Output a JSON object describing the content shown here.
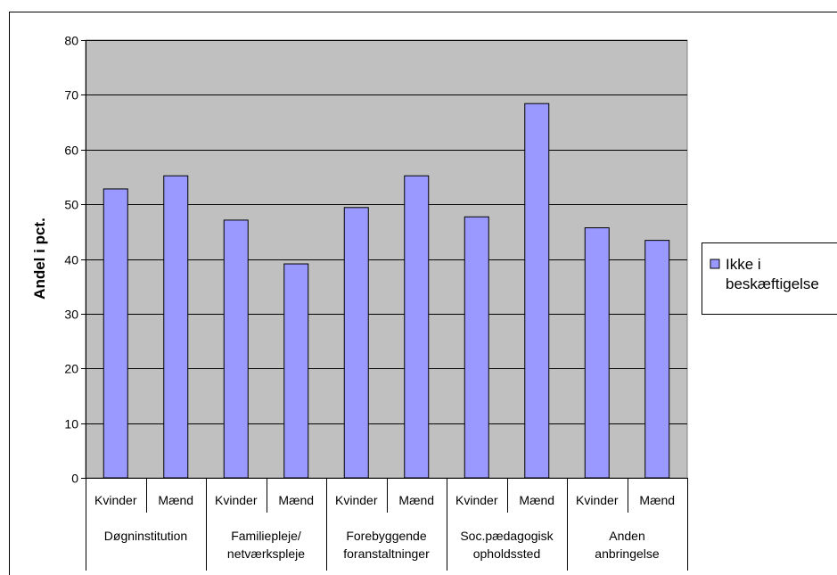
{
  "chart_data": {
    "type": "bar",
    "ylabel": "Andel i pct.",
    "ylim": [
      0,
      80
    ],
    "yticks": [
      0,
      10,
      20,
      30,
      40,
      50,
      60,
      70,
      80
    ],
    "categories": [
      "Kvinder",
      "Mænd",
      "Kvinder",
      "Mænd",
      "Kvinder",
      "Mænd",
      "Kvinder",
      "Mænd",
      "Kvinder",
      "Mænd"
    ],
    "groups": [
      {
        "lines": [
          "Døgninstitution"
        ]
      },
      {
        "lines": [
          "Familiepleje/",
          "netværkspleje"
        ]
      },
      {
        "lines": [
          "Forebyggende",
          "foranstaltninger"
        ]
      },
      {
        "lines": [
          "Soc.pædagogisk",
          "opholdssted"
        ]
      },
      {
        "lines": [
          "Anden",
          "anbringelse"
        ]
      }
    ],
    "series": [
      {
        "name": "Ikke i beskæftigelse",
        "legend_lines": [
          "Ikke i",
          "beskæftigelse"
        ],
        "values": [
          52.8,
          55.2,
          47.1,
          39.1,
          49.4,
          55.2,
          47.7,
          68.4,
          45.7,
          43.4
        ]
      }
    ],
    "colors": {
      "plot_bg": "#c0c0c0",
      "bar_fill": "#9999ff",
      "bar_stroke": "#000000",
      "grid": "#000000"
    },
    "grid": true,
    "legend_position": "right"
  }
}
